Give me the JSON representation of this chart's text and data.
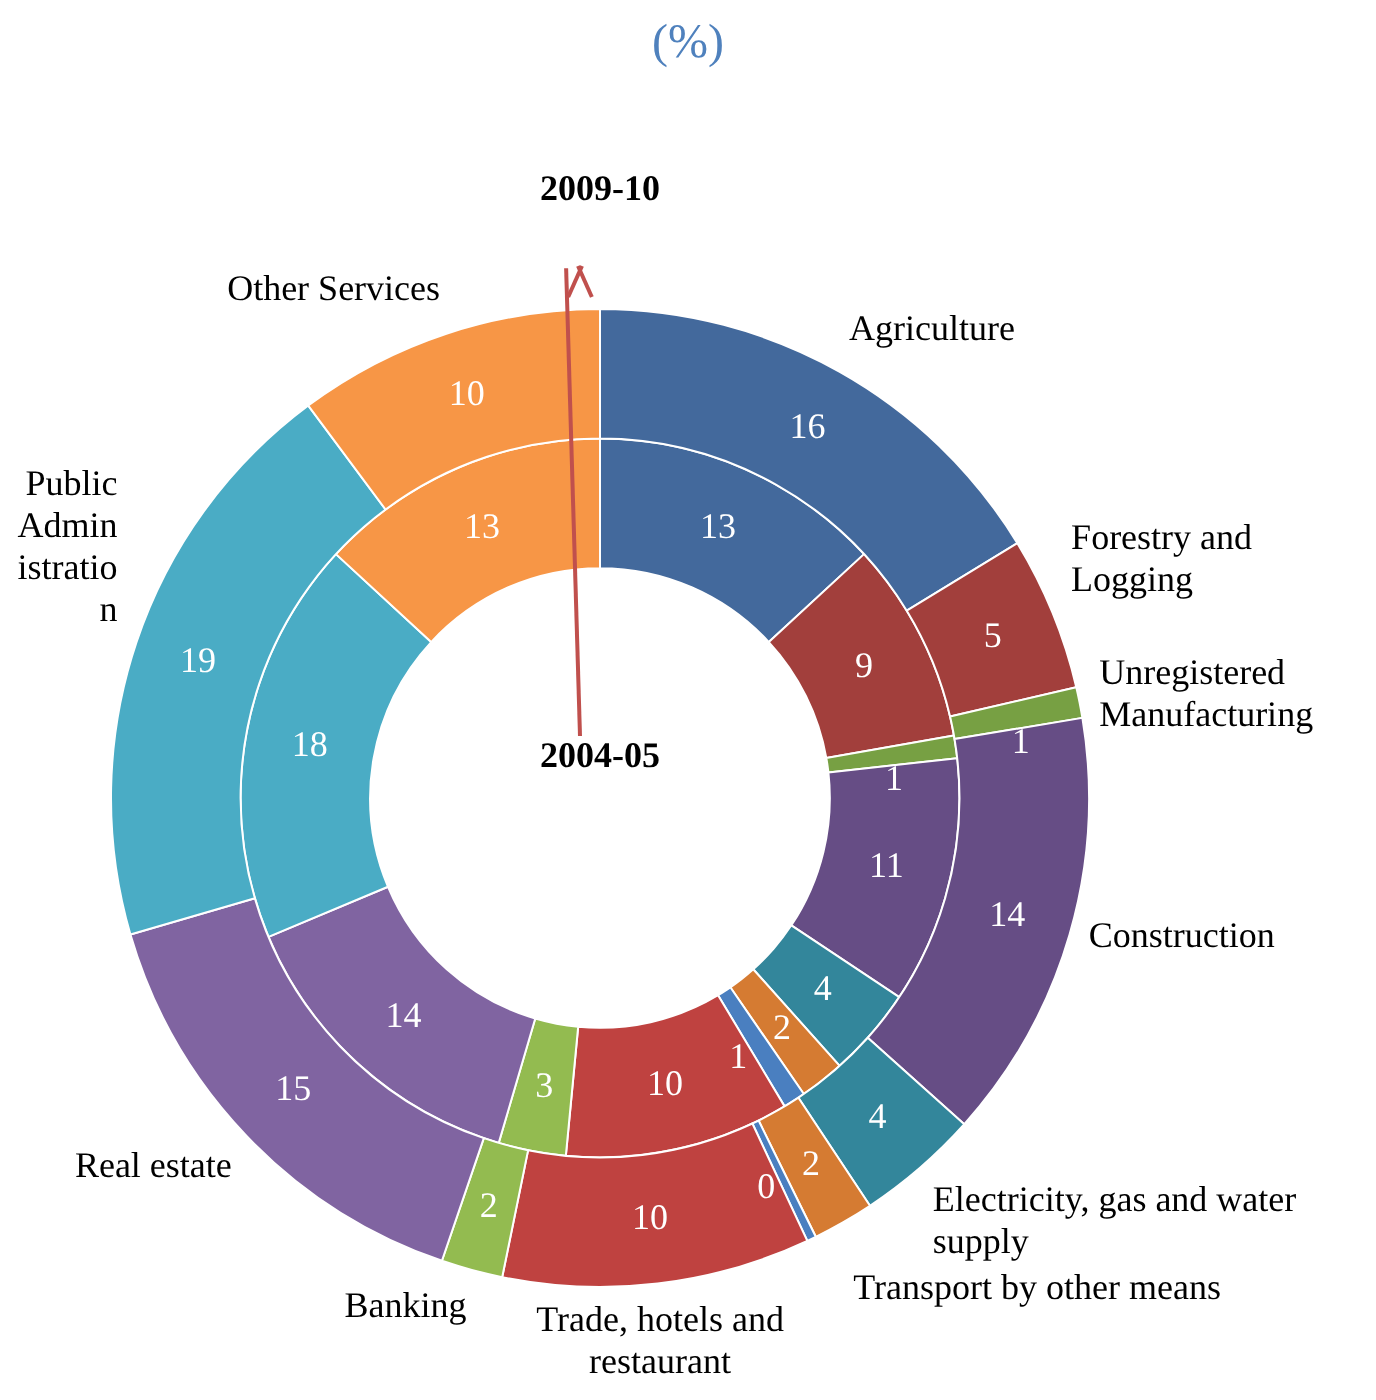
{
  "chart_data": {
    "type": "donut",
    "title": "(%)",
    "categories": [
      "Agriculture",
      "Forestry and Logging",
      "Unregistered Manufacturing",
      "Construction",
      "Electricity, gas and water supply",
      "Transport by other means",
      null,
      "Trade, hotels and restaurant",
      "Banking",
      "Real estate",
      "Public Administration",
      "Other Services"
    ],
    "colors": [
      "#43699c",
      "#a23f3c",
      "#77a043",
      "#664d85",
      "#33869b",
      "#d57b32",
      "#4a7fc0",
      "#bf4240",
      "#93bb50",
      "#8064a1",
      "#4aacc5",
      "#f79646"
    ],
    "series": [
      {
        "name": "2009-10",
        "values": [
          16,
          5,
          1,
          14,
          4,
          2,
          0.3,
          10,
          2,
          15,
          19,
          10
        ],
        "value_labels": [
          "16",
          "5",
          "1",
          "14",
          "4",
          "2",
          "0",
          "10",
          "2",
          "15",
          "19",
          "10"
        ]
      },
      {
        "name": "2004-05",
        "values": [
          13,
          9,
          1,
          11,
          4,
          2,
          1,
          10,
          3,
          14,
          18,
          13
        ],
        "value_labels": [
          "13",
          "9",
          "1",
          "11",
          "4",
          "2",
          "1",
          "10",
          "3",
          "14",
          "18",
          "13"
        ]
      }
    ],
    "legend": false
  }
}
